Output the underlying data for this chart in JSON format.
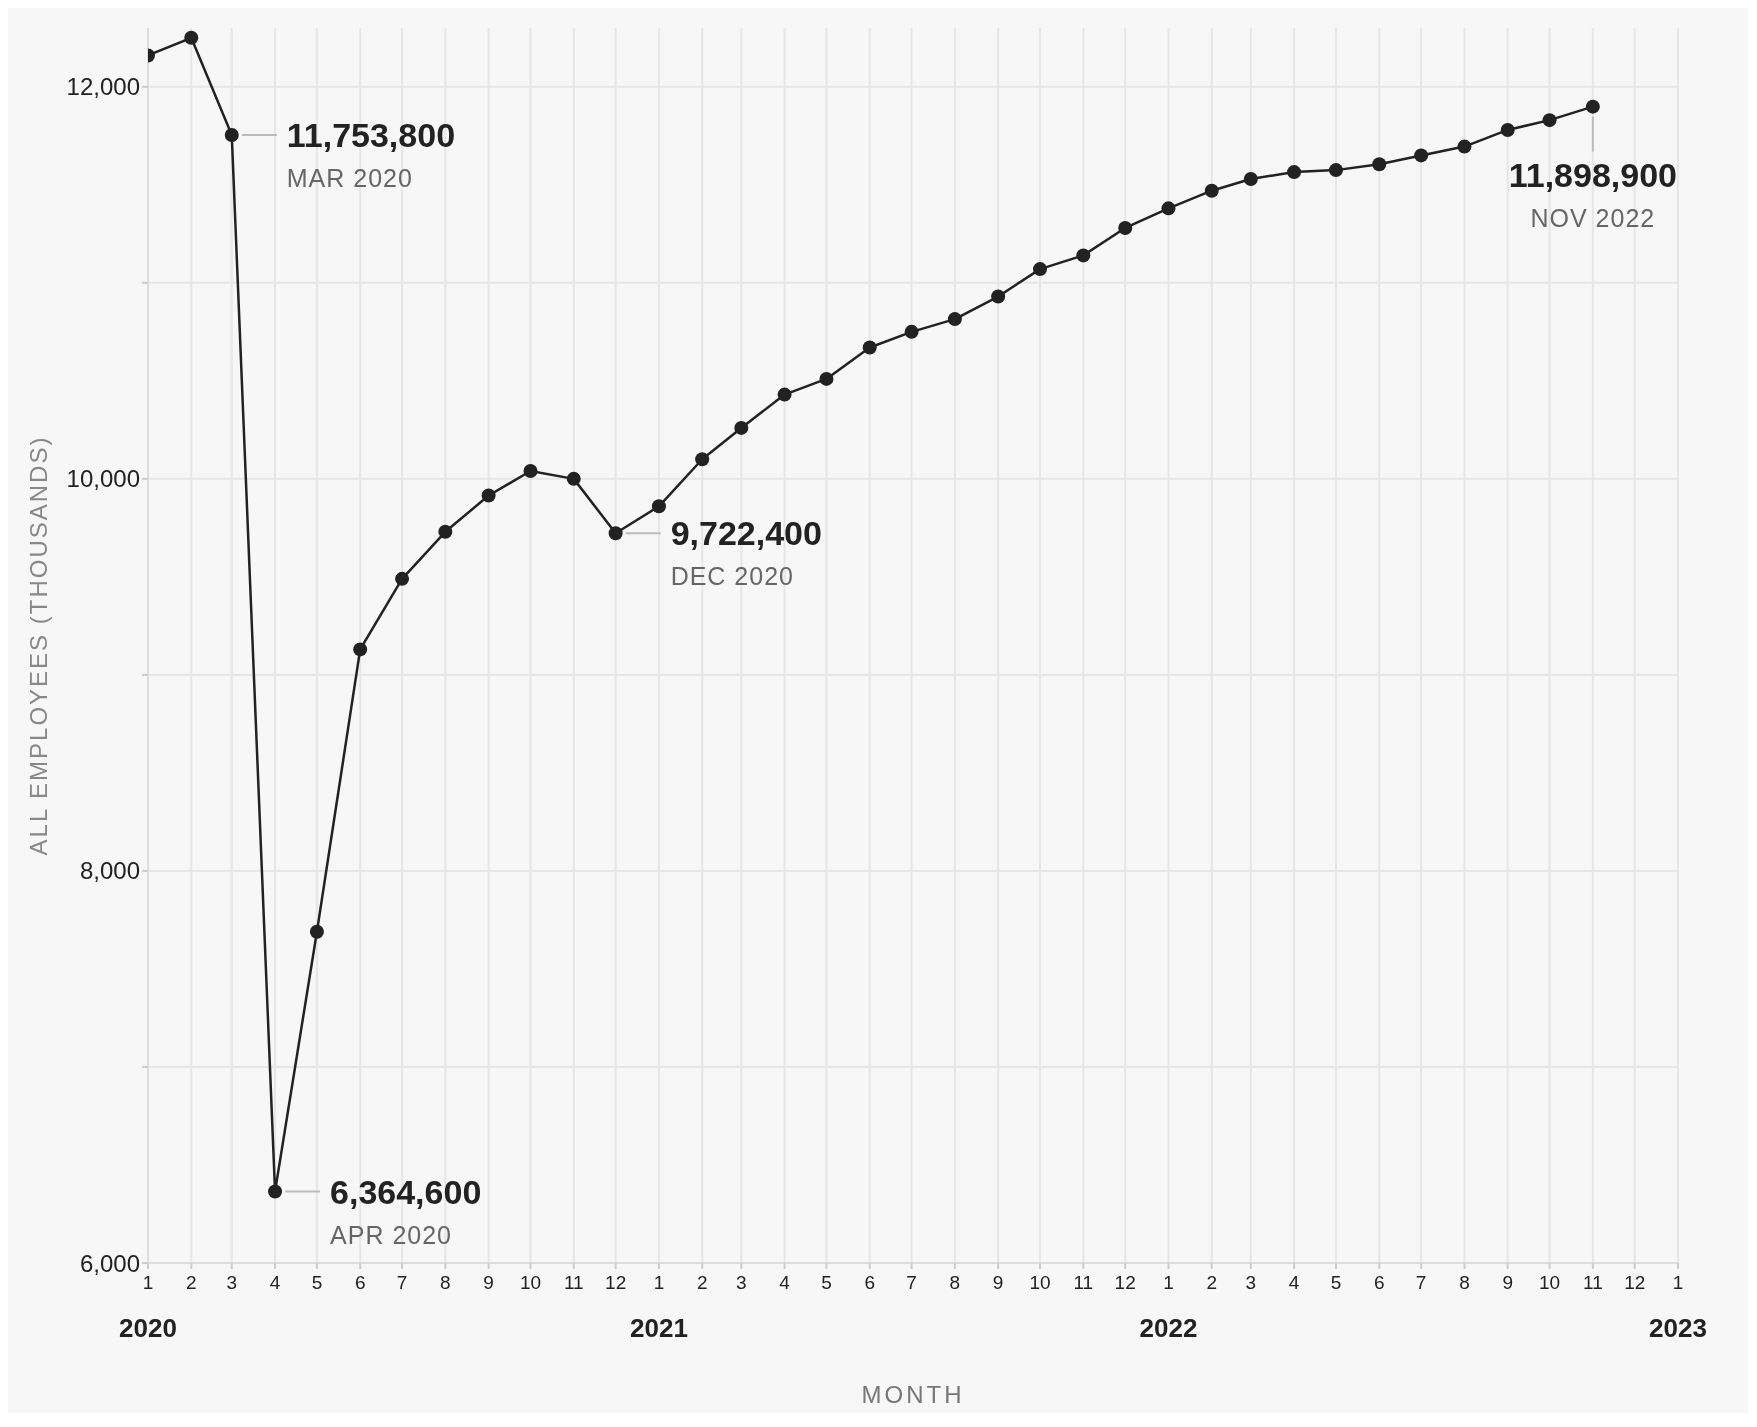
{
  "chart_data": {
    "type": "line",
    "xlabel": "MONTH",
    "ylabel": "ALL EMPLOYEES (THOUSANDS)",
    "x": [
      "2020-01",
      "2020-02",
      "2020-03",
      "2020-04",
      "2020-05",
      "2020-06",
      "2020-07",
      "2020-08",
      "2020-09",
      "2020-10",
      "2020-11",
      "2020-12",
      "2021-01",
      "2021-02",
      "2021-03",
      "2021-04",
      "2021-05",
      "2021-06",
      "2021-07",
      "2021-08",
      "2021-09",
      "2021-10",
      "2021-11",
      "2021-12",
      "2022-01",
      "2022-02",
      "2022-03",
      "2022-04",
      "2022-05",
      "2022-06",
      "2022-07",
      "2022-08",
      "2022-09",
      "2022-10",
      "2022-11"
    ],
    "series": [
      {
        "color": "#222222",
        "values": [
          12160,
          12250,
          11753.8,
          6364.6,
          7690,
          9130,
          9490,
          9730,
          9915,
          10040,
          10000,
          9722.4,
          9860,
          10100,
          10260,
          10430,
          10510,
          10670,
          10750,
          10815,
          10930,
          11070,
          11140,
          11280,
          11380,
          11470,
          11530,
          11565,
          11575,
          11605,
          11650,
          11695,
          11780,
          11830,
          11898.9
        ]
      }
    ],
    "xlim": [
      "2020-01",
      "2023-01"
    ],
    "xticks": [
      {
        "value": "2020-01",
        "label": "1\n2020"
      },
      {
        "value": "2020-02",
        "label": "2"
      },
      {
        "value": "2020-03",
        "label": "3"
      },
      {
        "value": "2020-04",
        "label": "4"
      },
      {
        "value": "2020-05",
        "label": "5"
      },
      {
        "value": "2020-06",
        "label": "6"
      },
      {
        "value": "2020-07",
        "label": "7"
      },
      {
        "value": "2020-08",
        "label": "8"
      },
      {
        "value": "2020-09",
        "label": "9"
      },
      {
        "value": "2020-10",
        "label": "10"
      },
      {
        "value": "2020-11",
        "label": "11"
      },
      {
        "value": "2020-12",
        "label": "12"
      },
      {
        "value": "2021-01",
        "label": "1\n2021"
      },
      {
        "value": "2021-02",
        "label": "2"
      },
      {
        "value": "2021-03",
        "label": "3"
      },
      {
        "value": "2021-04",
        "label": "4"
      },
      {
        "value": "2021-05",
        "label": "5"
      },
      {
        "value": "2021-06",
        "label": "6"
      },
      {
        "value": "2021-07",
        "label": "7"
      },
      {
        "value": "2021-08",
        "label": "8"
      },
      {
        "value": "2021-09",
        "label": "9"
      },
      {
        "value": "2021-10",
        "label": "10"
      },
      {
        "value": "2021-11",
        "label": "11"
      },
      {
        "value": "2021-12",
        "label": "12"
      },
      {
        "value": "2022-01",
        "label": "1\n2022"
      },
      {
        "value": "2022-02",
        "label": "2"
      },
      {
        "value": "2022-03",
        "label": "3"
      },
      {
        "value": "2022-04",
        "label": "4"
      },
      {
        "value": "2022-05",
        "label": "5"
      },
      {
        "value": "2022-06",
        "label": "6"
      },
      {
        "value": "2022-07",
        "label": "7"
      },
      {
        "value": "2022-08",
        "label": "8"
      },
      {
        "value": "2022-09",
        "label": "9"
      },
      {
        "value": "2022-10",
        "label": "10"
      },
      {
        "value": "2022-11",
        "label": "11"
      },
      {
        "value": "2022-12",
        "label": "12"
      },
      {
        "value": "2023-01",
        "label": "1\n2023"
      }
    ],
    "ylim": [
      6000,
      12300
    ],
    "yticks": [
      {
        "value": 6000,
        "label": "6,000"
      },
      {
        "value": 7000,
        "label": null
      },
      {
        "value": 8000,
        "label": "8,000"
      },
      {
        "value": 9000,
        "label": null
      },
      {
        "value": 10000,
        "label": "10,000"
      },
      {
        "value": 11000,
        "label": null
      },
      {
        "value": 12000,
        "label": "12,000"
      }
    ],
    "grid": true,
    "marker": "circle",
    "line_style": "solid",
    "legend": false,
    "annotations": [
      {
        "text": "11,753,800\nMAR 2020",
        "x": "2020-03",
        "y": 11753.8
      },
      {
        "text": "6,364,600\nAPR 2020",
        "x": "2020-04",
        "y": 6364.6
      },
      {
        "text": "9,722,400\nDEC 2020",
        "x": "2020-12",
        "y": 9722.4
      },
      {
        "text": "11,898,900\nNOV 2022",
        "x": "2022-11",
        "y": 11898.9
      }
    ]
  }
}
